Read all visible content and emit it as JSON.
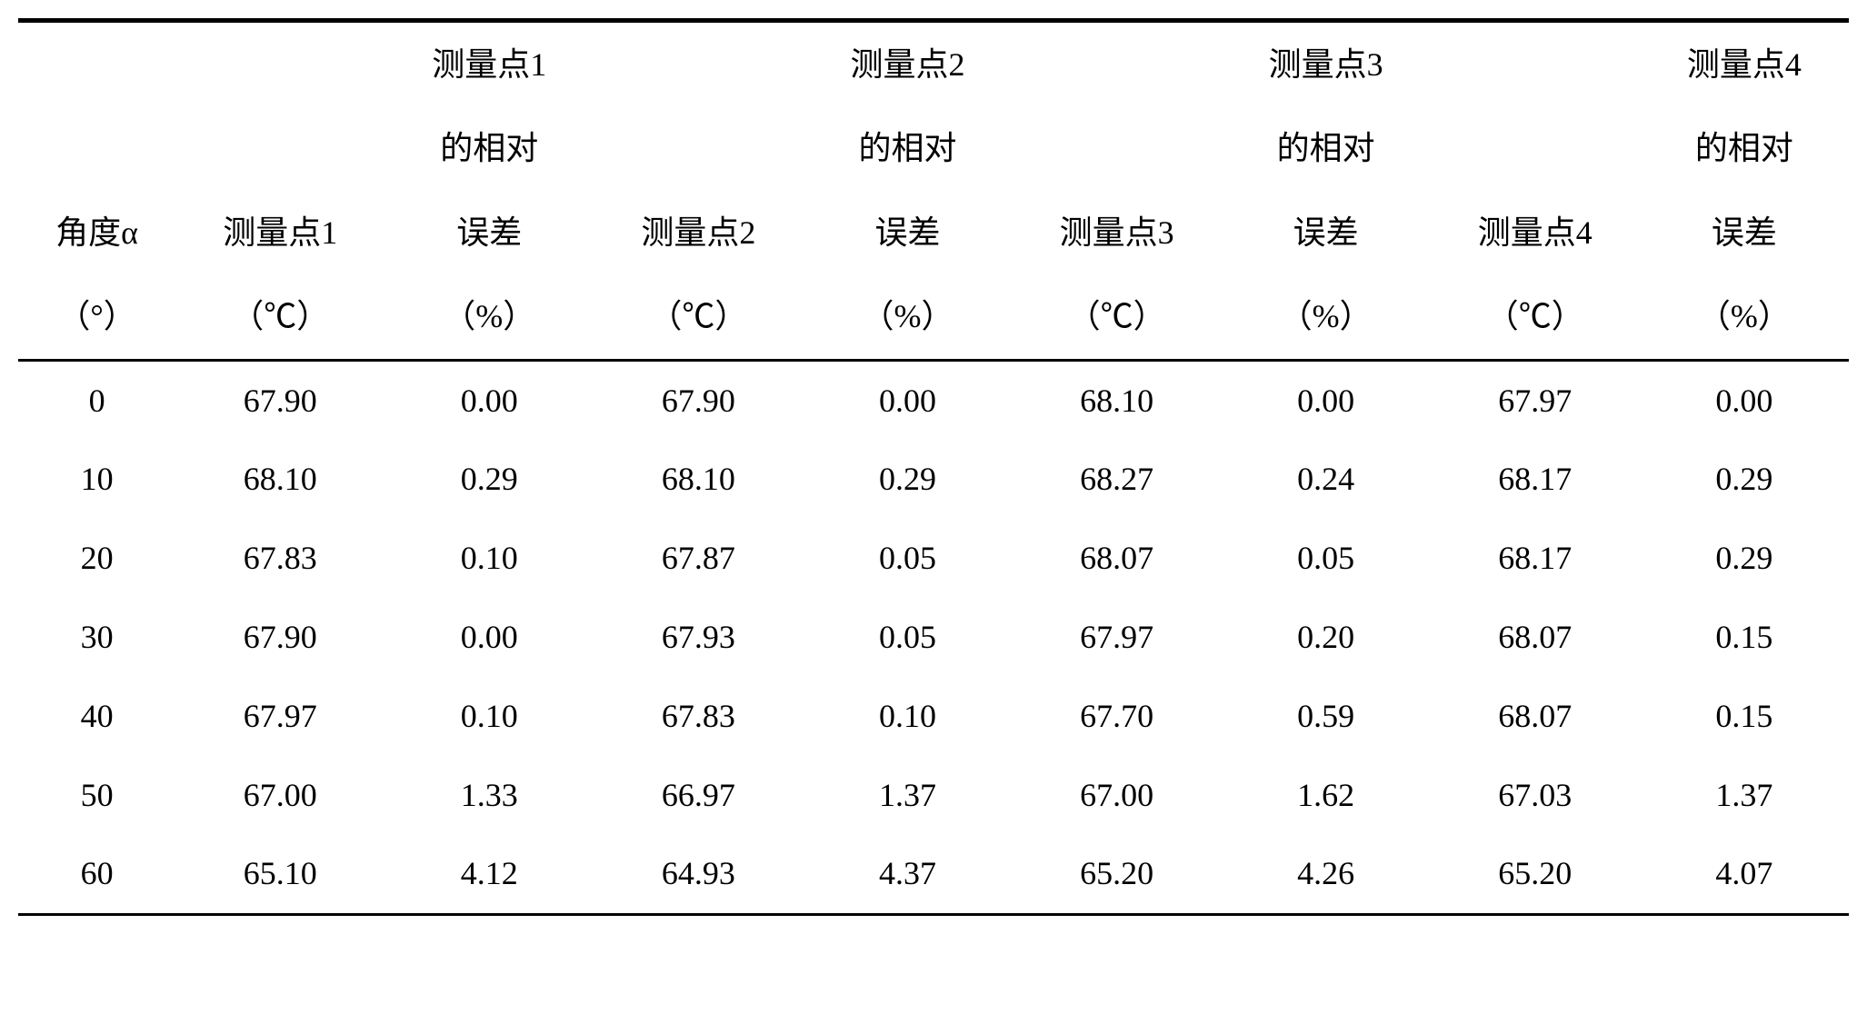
{
  "table": {
    "type": "table",
    "background_color": "#ffffff",
    "text_color": "#000000",
    "border_color": "#000000",
    "border_top_width": 5,
    "border_rule_width": 3,
    "font_size": 36,
    "columns": [
      {
        "line1": "",
        "line2": "",
        "line3": "角度α",
        "line4": "（°）"
      },
      {
        "line1": "",
        "line2": "",
        "line3": "测量点1",
        "line4": "（℃）"
      },
      {
        "line1": "测量点1",
        "line2": "的相对",
        "line3": "误差",
        "line4": "（%）"
      },
      {
        "line1": "",
        "line2": "",
        "line3": "测量点2",
        "line4": "（℃）"
      },
      {
        "line1": "测量点2",
        "line2": "的相对",
        "line3": "误差",
        "line4": "（%）"
      },
      {
        "line1": "",
        "line2": "",
        "line3": "测量点3",
        "line4": "（℃）"
      },
      {
        "line1": "测量点3",
        "line2": "的相对",
        "line3": "误差",
        "line4": "（%）"
      },
      {
        "line1": "",
        "line2": "",
        "line3": "测量点4",
        "line4": "（℃）"
      },
      {
        "line1": "测量点4",
        "line2": "的相对",
        "line3": "误差",
        "line4": "（%）"
      }
    ],
    "rows": [
      [
        "0",
        "67.90",
        "0.00",
        "67.90",
        "0.00",
        "68.10",
        "0.00",
        "67.97",
        "0.00"
      ],
      [
        "10",
        "68.10",
        "0.29",
        "68.10",
        "0.29",
        "68.27",
        "0.24",
        "68.17",
        "0.29"
      ],
      [
        "20",
        "67.83",
        "0.10",
        "67.87",
        "0.05",
        "68.07",
        "0.05",
        "68.17",
        "0.29"
      ],
      [
        "30",
        "67.90",
        "0.00",
        "67.93",
        "0.05",
        "67.97",
        "0.20",
        "68.07",
        "0.15"
      ],
      [
        "40",
        "67.97",
        "0.10",
        "67.83",
        "0.10",
        "67.70",
        "0.59",
        "68.07",
        "0.15"
      ],
      [
        "50",
        "67.00",
        "1.33",
        "66.97",
        "1.37",
        "67.00",
        "1.62",
        "67.03",
        "1.37"
      ],
      [
        "60",
        "65.10",
        "4.12",
        "64.93",
        "4.37",
        "65.20",
        "4.26",
        "65.20",
        "4.07"
      ]
    ]
  }
}
